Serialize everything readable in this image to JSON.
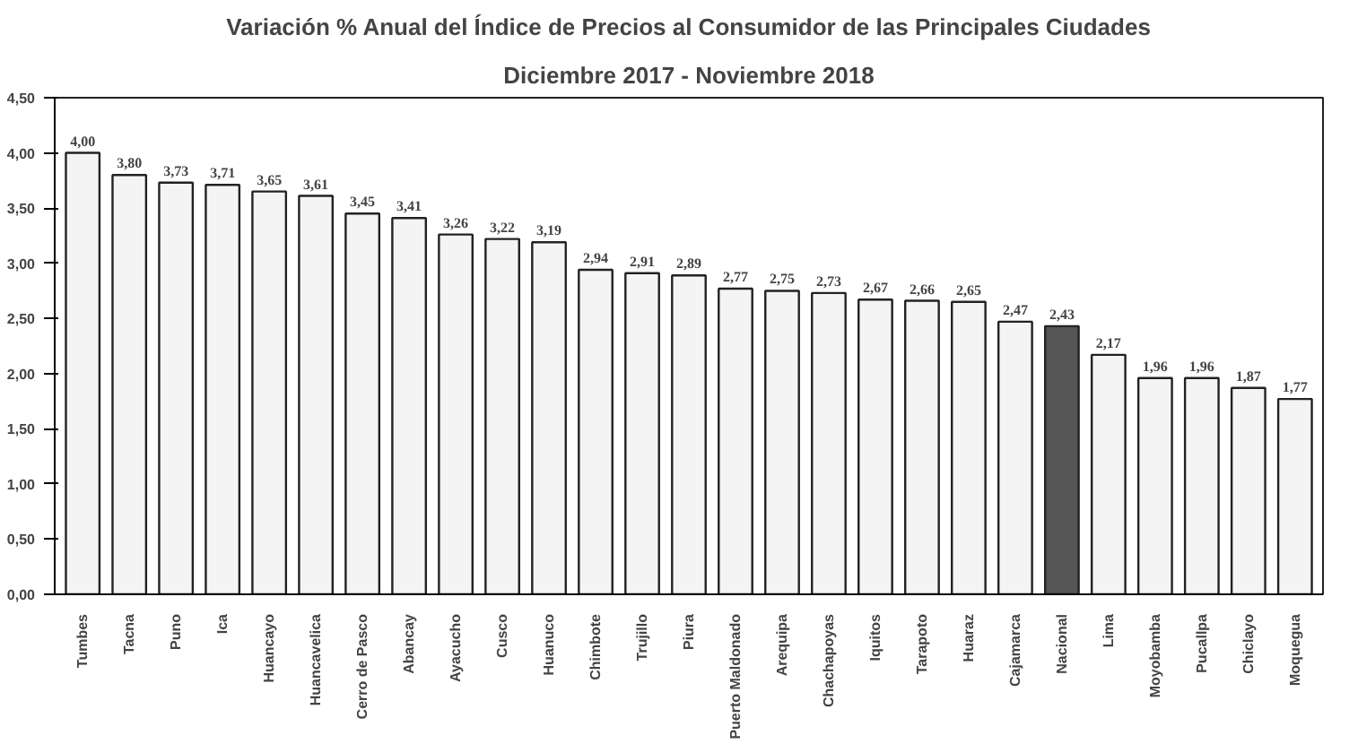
{
  "chart_data": {
    "type": "bar",
    "title": "Variación % Anual del Índice de Precios al Consumidor de las Principales Ciudades",
    "subtitle": "Diciembre 2017 - Noviembre 2018",
    "categories": [
      "Tumbes",
      "Tacna",
      "Puno",
      "Ica",
      "Huancayo",
      "Huancavelica",
      "Cerro de Pasco",
      "Abancay",
      "Ayacucho",
      "Cusco",
      "Huanuco",
      "Chimbote",
      "Trujillo",
      "Piura",
      "Puerto Maldonado",
      "Arequipa",
      "Chachapoyas",
      "Iquitos",
      "Tarapoto",
      "Huaraz",
      "Cajamarca",
      "Nacional",
      "Lima",
      "Moyobamba",
      "Pucallpa",
      "Chiclayo",
      "Moquegua"
    ],
    "values": [
      4.0,
      3.8,
      3.73,
      3.71,
      3.65,
      3.61,
      3.45,
      3.41,
      3.26,
      3.22,
      3.19,
      2.94,
      2.91,
      2.89,
      2.77,
      2.75,
      2.73,
      2.67,
      2.66,
      2.65,
      2.47,
      2.43,
      2.17,
      1.96,
      1.96,
      1.87,
      1.77
    ],
    "value_labels": [
      "4,00",
      "3,80",
      "3,73",
      "3,71",
      "3,65",
      "3,61",
      "3,45",
      "3,41",
      "3,26",
      "3,22",
      "3,19",
      "2,94",
      "2,91",
      "2,89",
      "2,77",
      "2,75",
      "2,73",
      "2,67",
      "2,66",
      "2,65",
      "2,47",
      "2,43",
      "2,17",
      "1,96",
      "1,96",
      "1,87",
      "1,77"
    ],
    "colors": [
      "#f4f4f4",
      "#f4f4f4",
      "#f4f4f4",
      "#f4f4f4",
      "#f4f4f4",
      "#f4f4f4",
      "#f4f4f4",
      "#f4f4f4",
      "#f4f4f4",
      "#f4f4f4",
      "#f4f4f4",
      "#f4f4f4",
      "#f4f4f4",
      "#f4f4f4",
      "#f4f4f4",
      "#f4f4f4",
      "#f4f4f4",
      "#f4f4f4",
      "#f4f4f4",
      "#f4f4f4",
      "#f4f4f4",
      "#555555",
      "#f4f4f4",
      "#f4f4f4",
      "#f4f4f4",
      "#f4f4f4",
      "#f4f4f4"
    ],
    "ylim": [
      0,
      4.5
    ],
    "yticks": [
      {
        "value": 0,
        "label": "0,00"
      },
      {
        "value": 0.5,
        "label": "0,50"
      },
      {
        "value": 1,
        "label": "1,00"
      },
      {
        "value": 1.5,
        "label": "1,50"
      },
      {
        "value": 2,
        "label": "2,00"
      },
      {
        "value": 2.5,
        "label": "2,50"
      },
      {
        "value": 3,
        "label": "3,00"
      },
      {
        "value": 3.5,
        "label": "3,50"
      },
      {
        "value": 4,
        "label": "4,00"
      },
      {
        "value": 4.5,
        "label": "4,50"
      }
    ],
    "grid": false
  }
}
